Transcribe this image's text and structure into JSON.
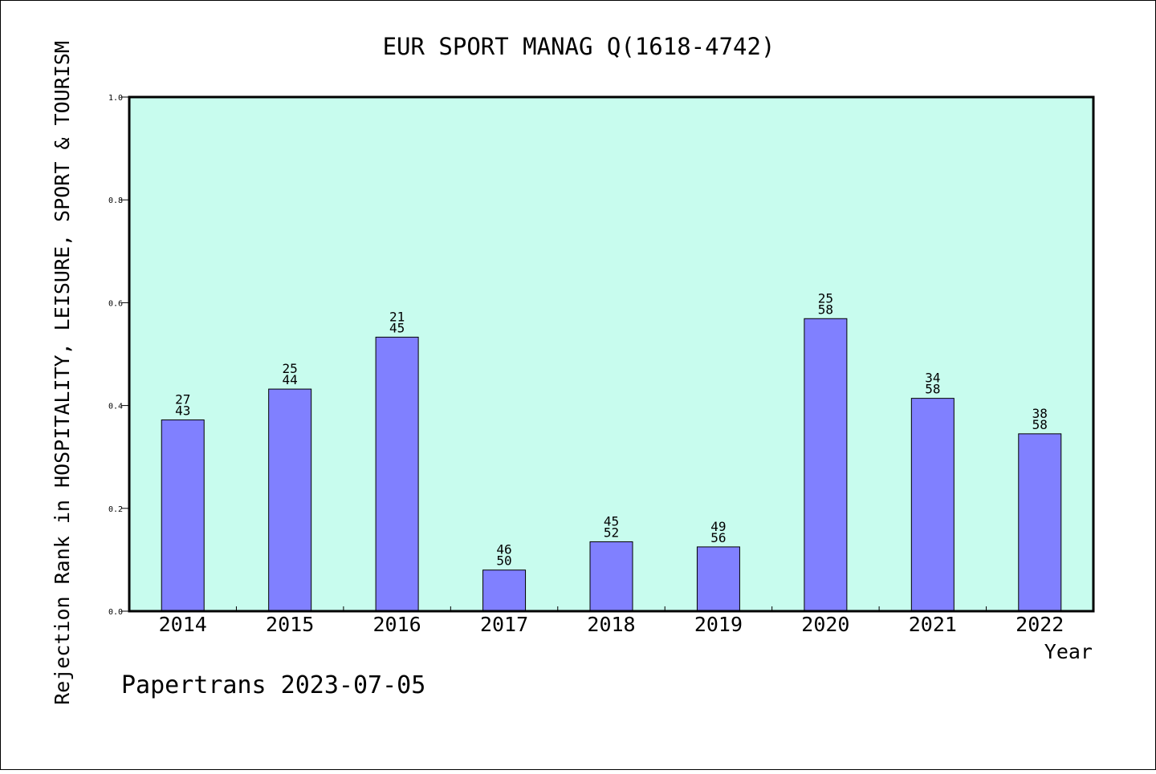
{
  "chart_data": {
    "type": "bar",
    "title": "EUR SPORT MANAG Q(1618-4742)",
    "xlabel": "Year",
    "ylabel": "Rejection Rank in HOSPITALITY, LEISURE, SPORT & TOURISM",
    "ylim": [
      0,
      1.0
    ],
    "yticks": [
      "0.0",
      "0.2",
      "0.4",
      "0.6",
      "0.8",
      "1.0"
    ],
    "grid": false,
    "categories": [
      "2014",
      "2015",
      "2016",
      "2017",
      "2018",
      "2019",
      "2020",
      "2021",
      "2022"
    ],
    "values": [
      0.372,
      0.432,
      0.533,
      0.08,
      0.135,
      0.125,
      0.569,
      0.414,
      0.345
    ],
    "rank": [
      "27",
      "25",
      "21",
      "46",
      "45",
      "49",
      "25",
      "34",
      "38"
    ],
    "total": [
      "43",
      "44",
      "45",
      "50",
      "52",
      "56",
      "58",
      "58",
      "58"
    ],
    "colors": {
      "plot_background": "#c8fcee",
      "bar_fill": "#8080ff",
      "bar_stroke": "#000000"
    }
  },
  "footer": {
    "credit": "Papertrans 2023-07-05"
  }
}
